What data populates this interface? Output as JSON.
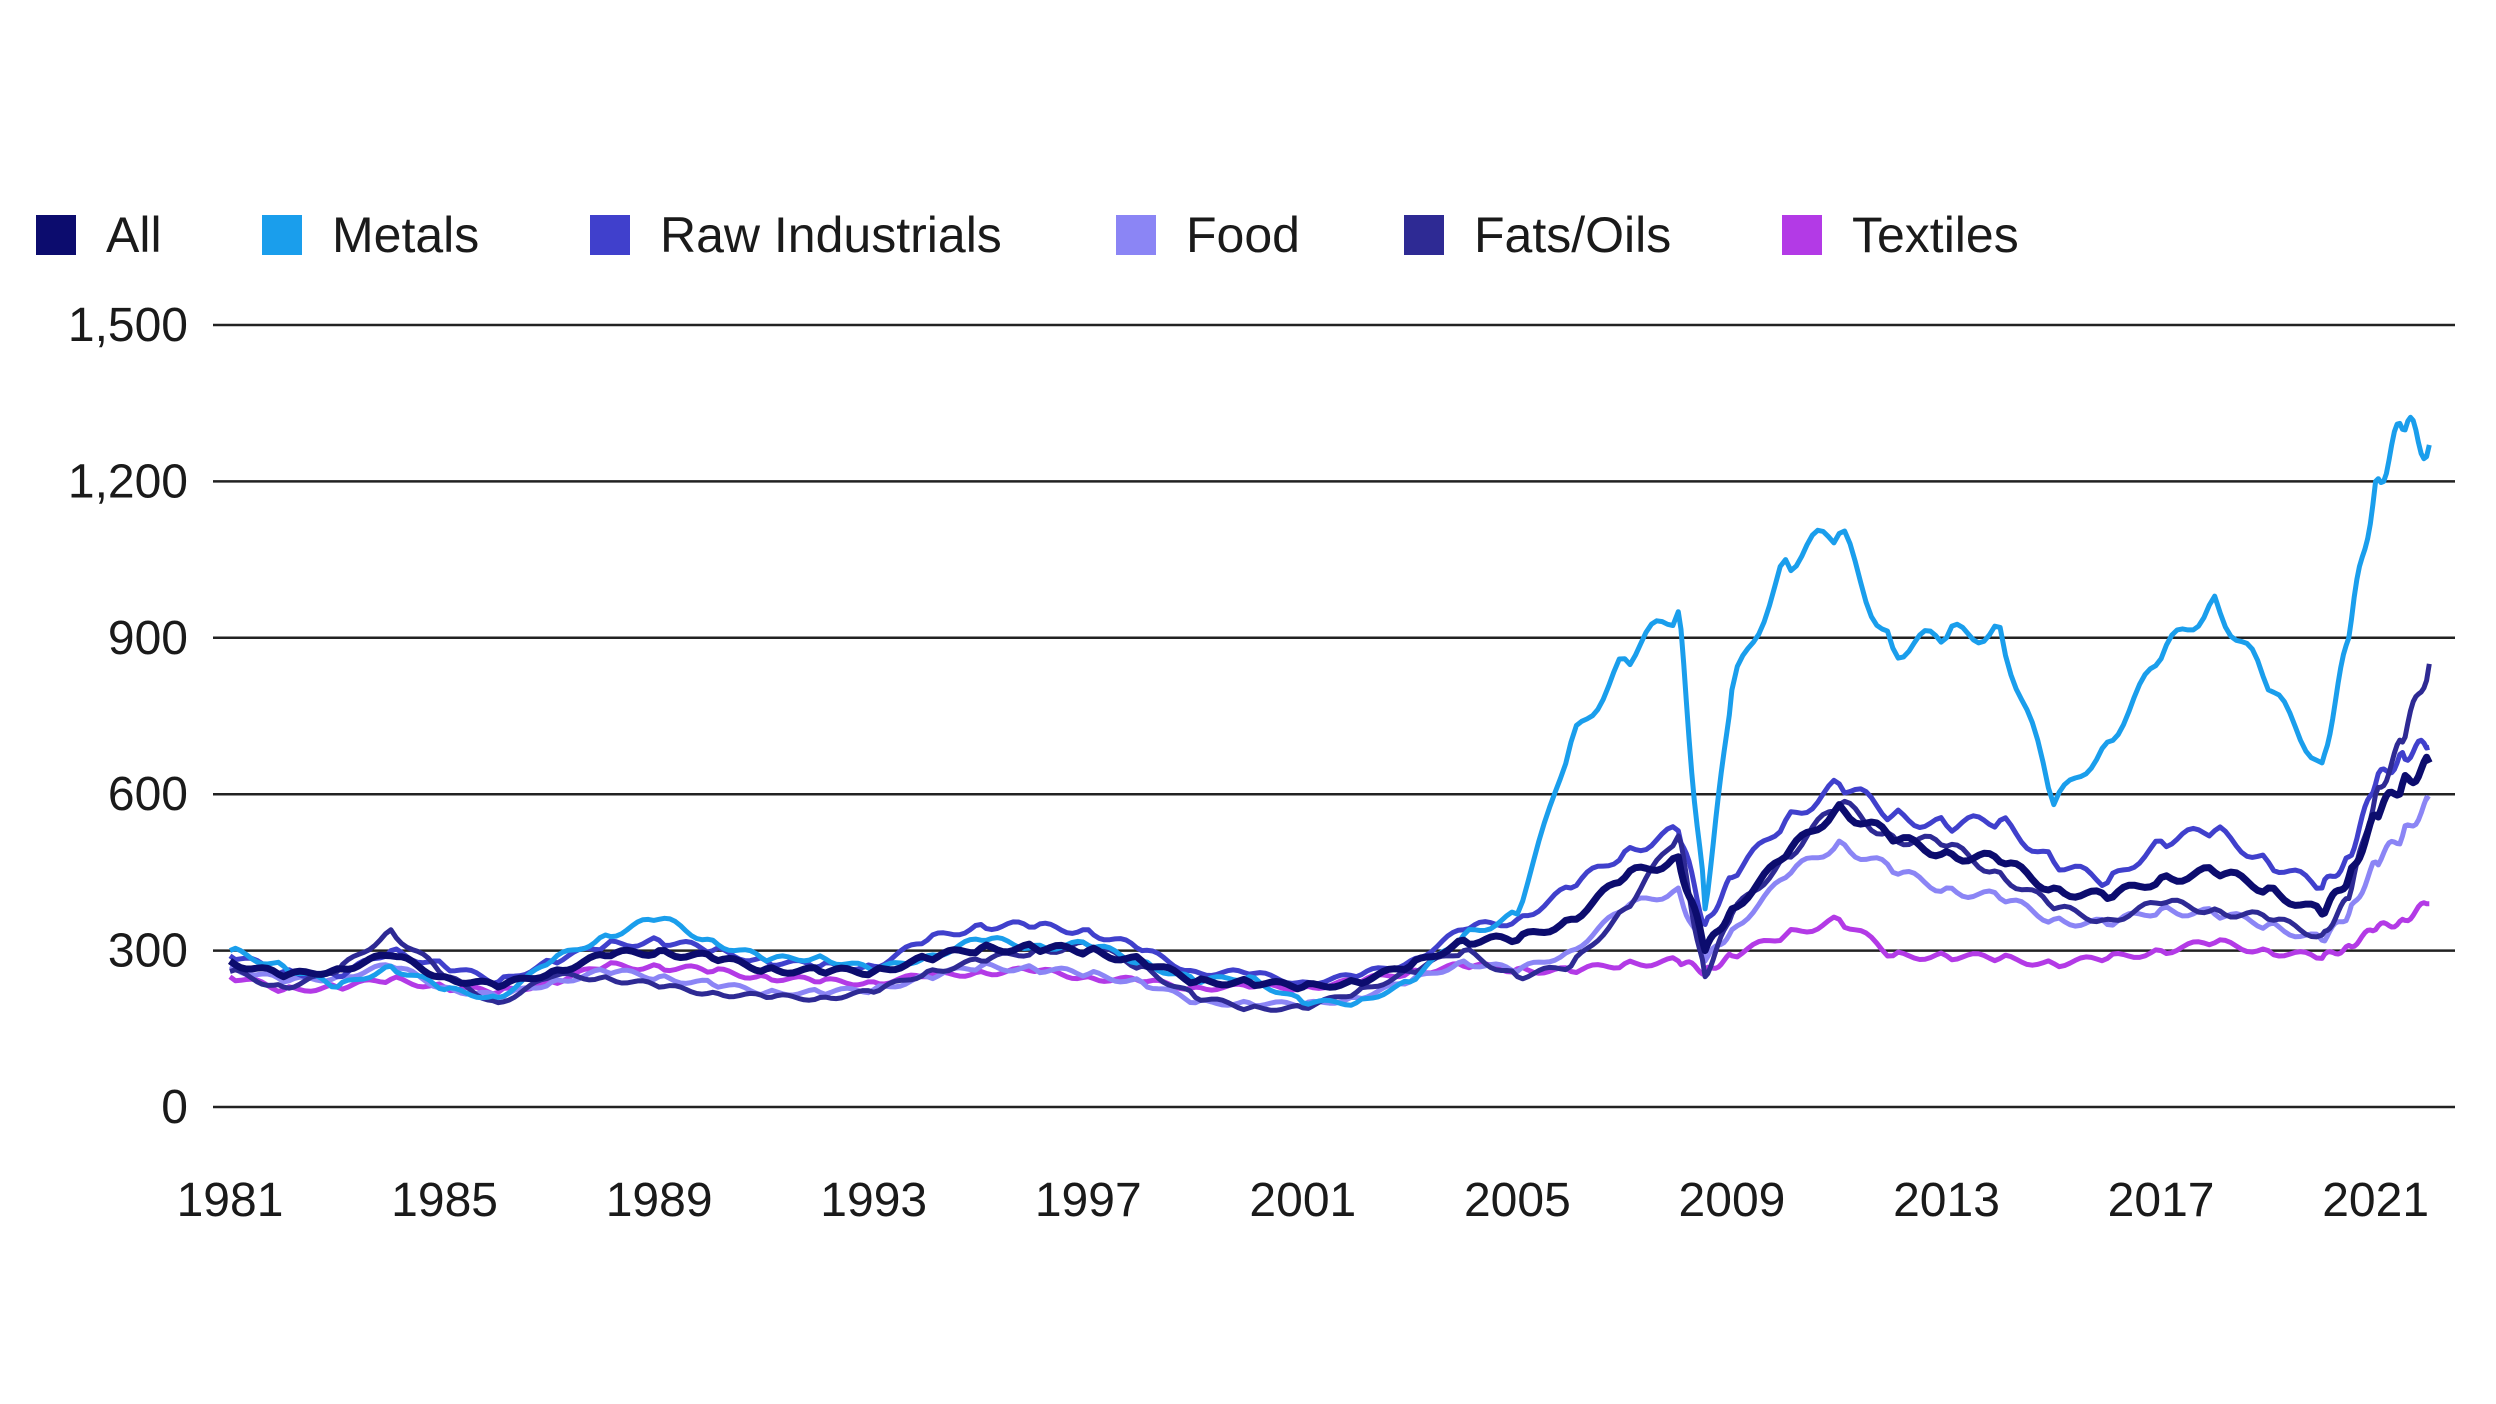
{
  "chart_data": {
    "type": "line",
    "title": "",
    "xlabel": "",
    "ylabel": "",
    "xlim": [
      1981,
      2022.2
    ],
    "ylim": [
      0,
      1500
    ],
    "y_ticks": [
      0,
      300,
      600,
      900,
      1200,
      1500
    ],
    "y_tick_labels": [
      "0",
      "300",
      "600",
      "900",
      "1,200",
      "1,500"
    ],
    "x_ticks": [
      1981,
      1985,
      1989,
      1993,
      1997,
      2001,
      2005,
      2009,
      2013,
      2017,
      2021
    ],
    "x_tick_labels": [
      "1981",
      "1985",
      "1989",
      "1993",
      "1997",
      "2001",
      "2005",
      "2009",
      "2013",
      "2017",
      "2021"
    ],
    "grid": "horizontal",
    "legend_position": "top-left",
    "x": [
      1981,
      1982,
      1983,
      1984,
      1985,
      1986,
      1987,
      1988,
      1989,
      1990,
      1991,
      1992,
      1993,
      1994,
      1995,
      1996,
      1997,
      1998,
      1999,
      2000,
      2001,
      2002,
      2003,
      2004,
      2005,
      2006,
      2007,
      2008,
      2008.5,
      2009,
      2010,
      2011,
      2012,
      2013,
      2014,
      2015,
      2016,
      2017,
      2018,
      2019,
      2020,
      2020.5,
      2021,
      2021.5,
      2022
    ],
    "series": [
      {
        "name": "All",
        "color": "#0c0c6e",
        "values": [
          280,
          250,
          265,
          290,
          250,
          230,
          260,
          290,
          300,
          285,
          265,
          260,
          260,
          285,
          305,
          305,
          300,
          280,
          240,
          240,
          230,
          240,
          270,
          320,
          320,
          360,
          440,
          480,
          300,
          380,
          480,
          580,
          510,
          490,
          470,
          420,
          400,
          440,
          450,
          420,
          370,
          440,
          560,
          620,
          660
        ]
      },
      {
        "name": "Metals",
        "color": "#1a9eec",
        "values": [
          300,
          270,
          230,
          270,
          225,
          210,
          280,
          330,
          360,
          320,
          280,
          290,
          260,
          290,
          320,
          310,
          310,
          280,
          240,
          250,
          200,
          200,
          240,
          330,
          370,
          700,
          860,
          950,
          380,
          800,
          1050,
          1100,
          880,
          900,
          920,
          580,
          700,
          860,
          980,
          800,
          660,
          900,
          1200,
          1300,
          1270
        ]
      },
      {
        "name": "Raw Industrials",
        "color": "#4040cc",
        "values": [
          290,
          260,
          250,
          300,
          270,
          240,
          280,
          310,
          320,
          300,
          280,
          270,
          270,
          320,
          350,
          345,
          340,
          300,
          260,
          255,
          240,
          250,
          280,
          340,
          360,
          420,
          490,
          530,
          350,
          440,
          550,
          620,
          560,
          540,
          550,
          470,
          430,
          510,
          530,
          470,
          420,
          480,
          620,
          680,
          690
        ]
      },
      {
        "name": "Food",
        "color": "#8b85f5",
        "values": [
          270,
          240,
          250,
          270,
          230,
          210,
          240,
          260,
          250,
          235,
          220,
          220,
          225,
          250,
          270,
          265,
          255,
          240,
          200,
          200,
          195,
          210,
          240,
          280,
          260,
          300,
          380,
          420,
          280,
          340,
          440,
          510,
          450,
          420,
          400,
          360,
          350,
          380,
          370,
          350,
          320,
          370,
          470,
          520,
          590
        ]
      },
      {
        "name": "Fats/Oils",
        "color": "#2e2a94",
        "values": [
          260,
          230,
          260,
          340,
          250,
          200,
          250,
          250,
          230,
          220,
          210,
          210,
          220,
          260,
          280,
          300,
          310,
          270,
          210,
          190,
          190,
          220,
          260,
          300,
          250,
          270,
          380,
          520,
          250,
          370,
          480,
          580,
          520,
          500,
          450,
          380,
          360,
          390,
          380,
          360,
          330,
          400,
          600,
          700,
          850
        ]
      },
      {
        "name": "Textiles",
        "color": "#b33ae6",
        "values": [
          250,
          225,
          230,
          245,
          230,
          220,
          240,
          270,
          270,
          260,
          250,
          240,
          240,
          250,
          260,
          260,
          250,
          240,
          230,
          230,
          230,
          240,
          260,
          270,
          265,
          260,
          275,
          280,
          260,
          290,
          330,
          360,
          290,
          290,
          285,
          275,
          285,
          300,
          315,
          300,
          285,
          310,
          340,
          360,
          390
        ]
      }
    ]
  }
}
